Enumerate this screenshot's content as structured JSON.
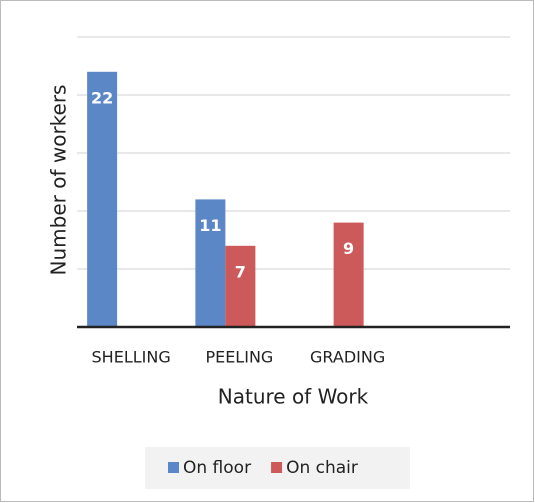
{
  "chart_data": {
    "type": "bar",
    "x_label": "Nature of Work",
    "y_label": "Number of workers",
    "categories": [
      "SHELLING",
      "PEELING",
      "GRADING",
      null
    ],
    "series": [
      {
        "name": "On floor",
        "color": "#5b87c7",
        "values": [
          22,
          11,
          null,
          null
        ]
      },
      {
        "name": "On chair",
        "color": "#cd5a5a",
        "values": [
          null,
          7,
          9,
          null
        ]
      }
    ],
    "ylim": [
      0,
      25
    ],
    "yticks": [
      0,
      5,
      10,
      15,
      20,
      25
    ],
    "grid": true,
    "legend": "bottom"
  }
}
